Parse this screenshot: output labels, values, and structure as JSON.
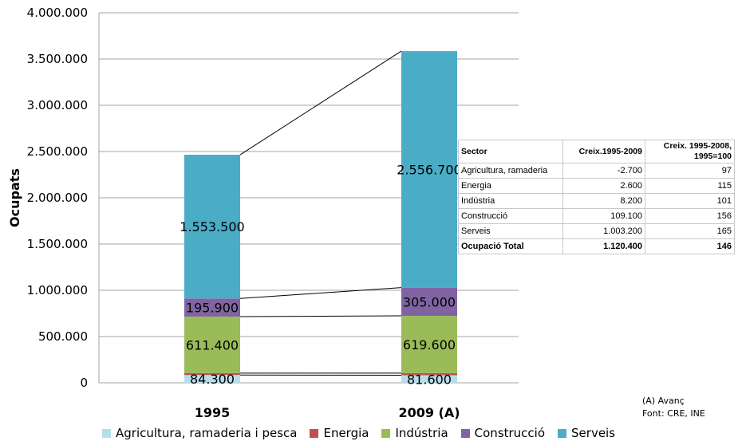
{
  "chart_data": {
    "type": "bar",
    "stacked": true,
    "categories": [
      "1995",
      "2009 (A)"
    ],
    "ylabel": "Ocupats",
    "ylim": [
      0,
      4000000
    ],
    "yticks": [
      "0",
      "500.000",
      "1.000.000",
      "1.500.000",
      "2.000.000",
      "2.500.000",
      "3.000.000",
      "3.500.000",
      "4.000.000"
    ],
    "grid": true,
    "legend_position": "bottom",
    "series": [
      {
        "name": "Agricultura, ramaderia i pesca",
        "color": "#b7dde8",
        "values": [
          84300,
          81600
        ],
        "labels": [
          "84.300",
          "81.600"
        ]
      },
      {
        "name": "Energia",
        "color": "#c0504d",
        "values": [
          20000,
          22600
        ],
        "labels": [
          "",
          ""
        ]
      },
      {
        "name": "Indústria",
        "color": "#9bbb59",
        "values": [
          611400,
          619600
        ],
        "labels": [
          "611.400",
          "619.600"
        ]
      },
      {
        "name": "Construcció",
        "color": "#8064a2",
        "values": [
          195900,
          305000
        ],
        "labels": [
          "195.900",
          "305.000"
        ]
      },
      {
        "name": "Serveis",
        "color": "#4bacc6",
        "values": [
          1553500,
          2556700
        ],
        "labels": [
          "1.553.500",
          "2.556.700"
        ]
      }
    ]
  },
  "table": {
    "headers": [
      "Sector",
      "Creix.1995-2009",
      "Creix. 1995-2008, 1995=100"
    ],
    "rows": [
      [
        "Agricultura, ramaderia",
        "-2.700",
        "97"
      ],
      [
        "Energia",
        "2.600",
        "115"
      ],
      [
        "Indústria",
        "8.200",
        "101"
      ],
      [
        "Construcció",
        "109.100",
        "156"
      ],
      [
        "Serveis",
        "1.003.200",
        "165"
      ]
    ],
    "total": [
      "Ocupació Total",
      "1.120.400",
      "146"
    ]
  },
  "notes": {
    "avanc": "(A) Avanç",
    "font": "Font: CRE, INE"
  }
}
